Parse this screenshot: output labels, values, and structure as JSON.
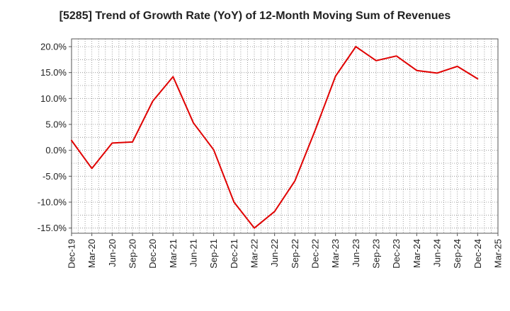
{
  "chart_data": {
    "type": "line",
    "title": "[5285]  Trend of Growth Rate (YoY) of 12-Month Moving Sum of Revenues",
    "xlabel": "",
    "ylabel": "",
    "x": [
      "Dec-19",
      "Mar-20",
      "Jun-20",
      "Sep-20",
      "Dec-20",
      "Mar-21",
      "Jun-21",
      "Sep-21",
      "Dec-21",
      "Mar-22",
      "Jun-22",
      "Sep-22",
      "Dec-22",
      "Mar-23",
      "Jun-23",
      "Sep-23",
      "Dec-23",
      "Mar-24",
      "Jun-24",
      "Sep-24",
      "Dec-24",
      "Mar-25"
    ],
    "series": [
      {
        "name": "",
        "color": "#e00000",
        "values": [
          1.9,
          -3.5,
          1.4,
          1.6,
          9.5,
          14.2,
          5.3,
          0.1,
          -10.0,
          -15.0,
          -11.8,
          -5.9,
          3.9,
          14.3,
          20.0,
          17.3,
          18.2,
          15.4,
          14.9,
          16.2,
          13.8,
          null
        ]
      }
    ],
    "yticks": [
      -15.0,
      -10.0,
      -5.0,
      0.0,
      5.0,
      10.0,
      15.0,
      20.0
    ],
    "ytick_labels": [
      "-15.0%",
      "-10.0%",
      "-5.0%",
      "0.0%",
      "5.0%",
      "10.0%",
      "15.0%",
      "20.0%"
    ],
    "ylim": [
      -16.0,
      21.5
    ],
    "grid": true,
    "grid_style": "dotted",
    "legend": "none"
  }
}
